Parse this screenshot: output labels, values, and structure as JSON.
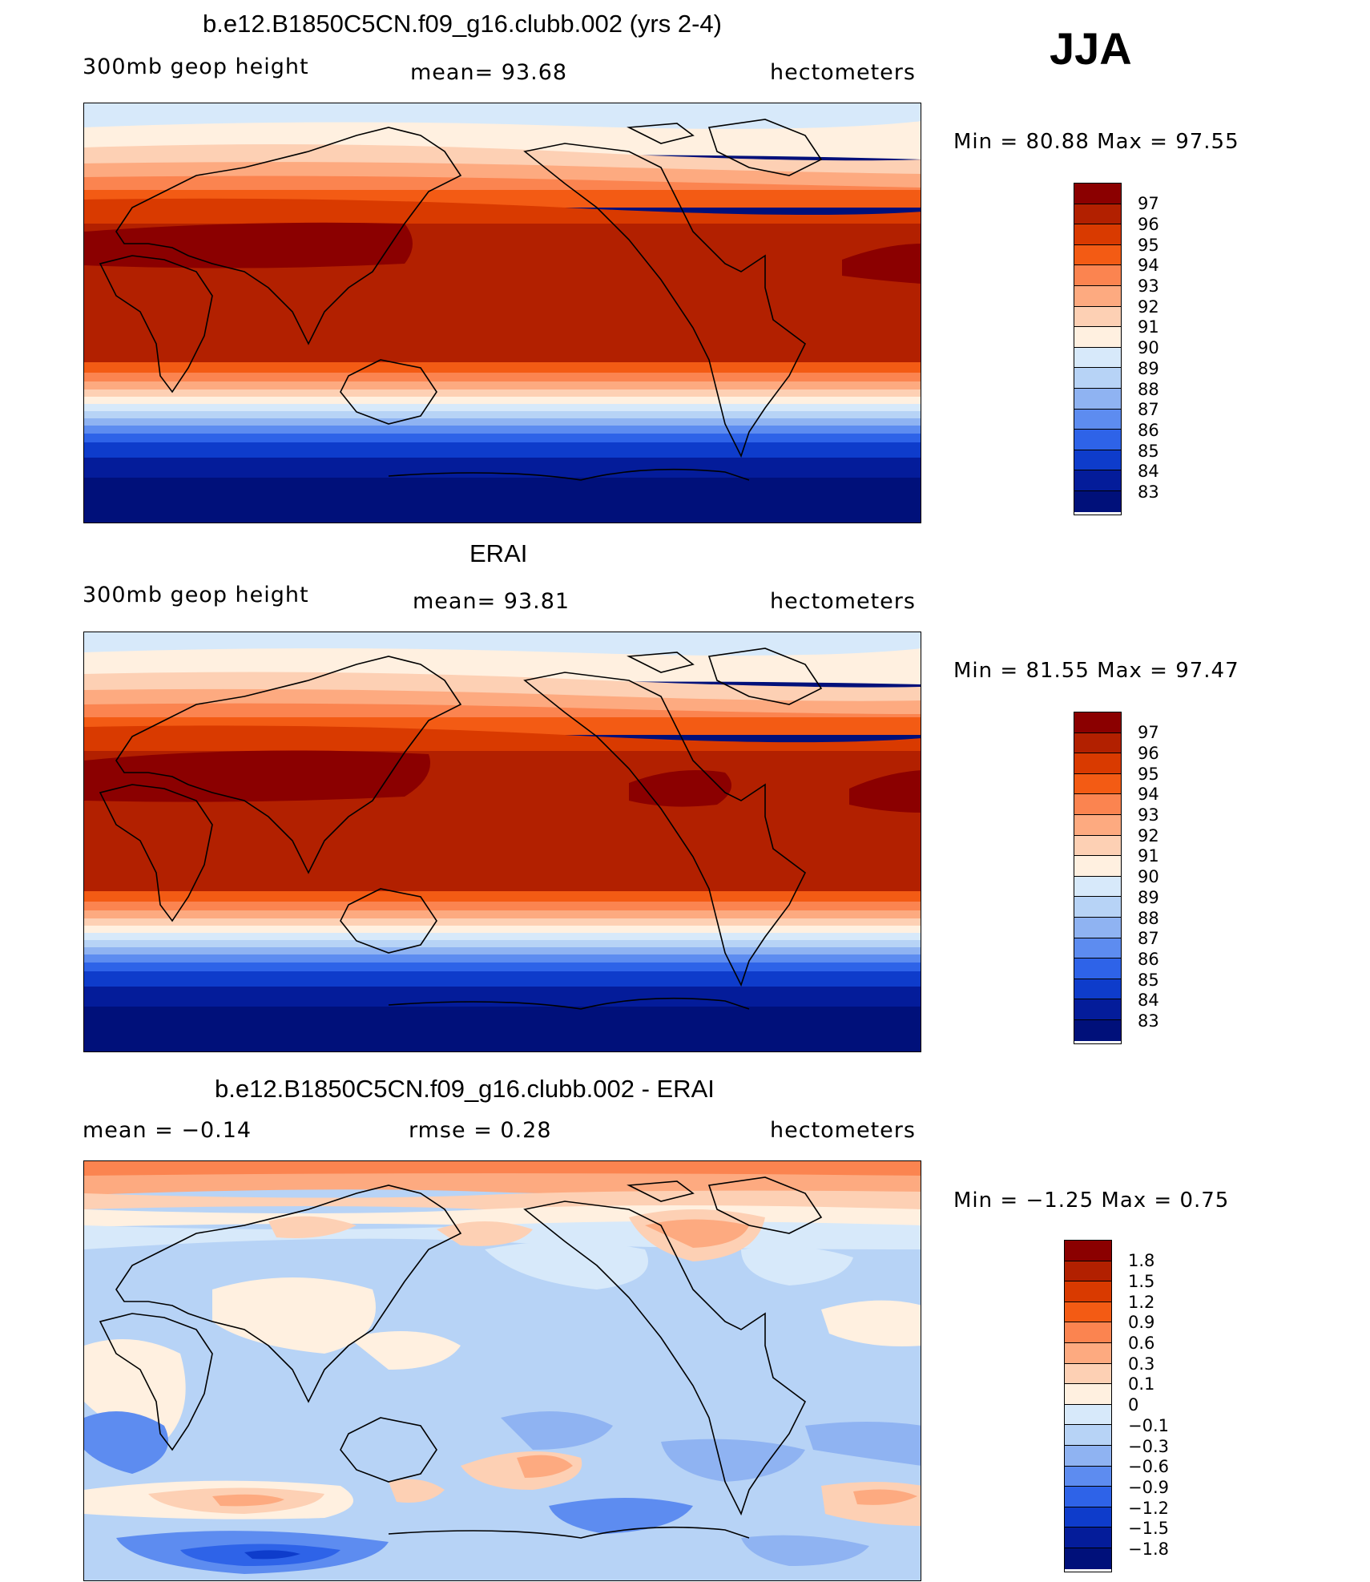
{
  "season": "JJA",
  "panels": [
    {
      "title": "b.e12.B1850C5CN.f09_g16.clubb.002 (yrs 2-4)",
      "left_label": "300mb geop height",
      "center_label": "mean=  93.68",
      "right_label": "hectometers",
      "minmax": "Min =   80.88 Max =   97.55",
      "colorbar": {
        "labels": [
          "97",
          "96",
          "95",
          "94",
          "93",
          "92",
          "91",
          "90",
          "89",
          "88",
          "87",
          "86",
          "85",
          "84",
          "83"
        ],
        "colors": [
          "#8b0000",
          "#b22000",
          "#d93a00",
          "#f35b14",
          "#fb8450",
          "#fdaa80",
          "#fdd0b4",
          "#fff0e0",
          "#d7e9fa",
          "#b7d3f6",
          "#8fb3f2",
          "#5d8cf0",
          "#2e63e8",
          "#0e3ccb",
          "#041c9a",
          "#00107a"
        ]
      },
      "map_colors": {
        "polar_north": "#d7e9fa",
        "band1": "#fff0e0",
        "band2": "#fdd0b4",
        "band3": "#fdaa80",
        "band4": "#fb8450",
        "band5": "#f35b14",
        "band6": "#d93a00",
        "tropics": "#b22000",
        "core": "#8b0000",
        "south1": "#fdaa80",
        "south2": "#fdd0b4",
        "south3": "#fff0e0",
        "south4": "#d7e9fa",
        "south5": "#b7d3f6",
        "south6": "#8fb3f2",
        "south7": "#5d8cf0",
        "south8": "#2e63e8",
        "south9": "#0e3ccb",
        "south10": "#041c9a",
        "polar_south": "#00107a"
      }
    },
    {
      "title": "ERAI",
      "left_label": "300mb geop height",
      "center_label": "mean=  93.81",
      "right_label": "hectometers",
      "minmax": "Min =   81.55 Max =   97.47",
      "colorbar": {
        "labels": [
          "97",
          "96",
          "95",
          "94",
          "93",
          "92",
          "91",
          "90",
          "89",
          "88",
          "87",
          "86",
          "85",
          "84",
          "83"
        ],
        "colors": [
          "#8b0000",
          "#b22000",
          "#d93a00",
          "#f35b14",
          "#fb8450",
          "#fdaa80",
          "#fdd0b4",
          "#fff0e0",
          "#d7e9fa",
          "#b7d3f6",
          "#8fb3f2",
          "#5d8cf0",
          "#2e63e8",
          "#0e3ccb",
          "#041c9a",
          "#00107a"
        ]
      }
    },
    {
      "title": "b.e12.B1850C5CN.f09_g16.clubb.002 - ERAI",
      "left_label": "mean =   −0.14",
      "center_label": "rmse =    0.28",
      "right_label": "hectometers",
      "minmax": "Min =   −1.25 Max =     0.75",
      "colorbar": {
        "labels": [
          "1.8",
          "1.5",
          "1.2",
          "0.9",
          "0.6",
          "0.3",
          "0.1",
          "0",
          "−0.1",
          "−0.3",
          "−0.6",
          "−0.9",
          "−1.2",
          "−1.5",
          "−1.8"
        ],
        "colors": [
          "#8b0000",
          "#b22000",
          "#d93a00",
          "#f35b14",
          "#fb8450",
          "#fdaa80",
          "#fdd0b4",
          "#fff0e0",
          "#d7e9fa",
          "#b7d3f6",
          "#8fb3f2",
          "#5d8cf0",
          "#2e63e8",
          "#0e3ccb",
          "#041c9a",
          "#00107a"
        ]
      }
    }
  ]
}
